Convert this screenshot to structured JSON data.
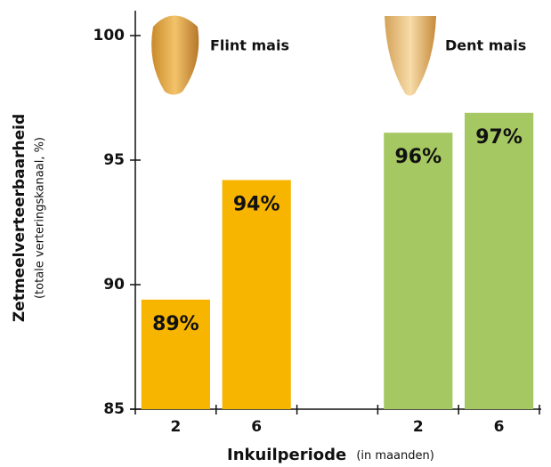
{
  "chart_data": {
    "type": "bar",
    "y_label": "Zetmeelverteerbaarheid",
    "y_sublabel": "(totale verteringskanaal, %)",
    "x_label": "Inkuilperiode",
    "x_sublabel": "(in maanden)",
    "categories": [
      "2",
      "6",
      null,
      "2",
      "6"
    ],
    "series": [
      {
        "name": "Flint mais",
        "color": "#f7b500",
        "values": [
          89.4,
          94.2,
          null,
          null,
          null
        ],
        "value_labels": [
          "89%",
          "94%",
          null,
          null,
          null
        ]
      },
      {
        "name": "Dent mais",
        "color": "#a5c862",
        "values": [
          null,
          null,
          null,
          96.1,
          96.9
        ],
        "value_labels": [
          null,
          null,
          null,
          "96%",
          "97%"
        ]
      }
    ],
    "ylim": [
      85,
      101
    ],
    "yticks": [
      85,
      90,
      95,
      100
    ]
  }
}
